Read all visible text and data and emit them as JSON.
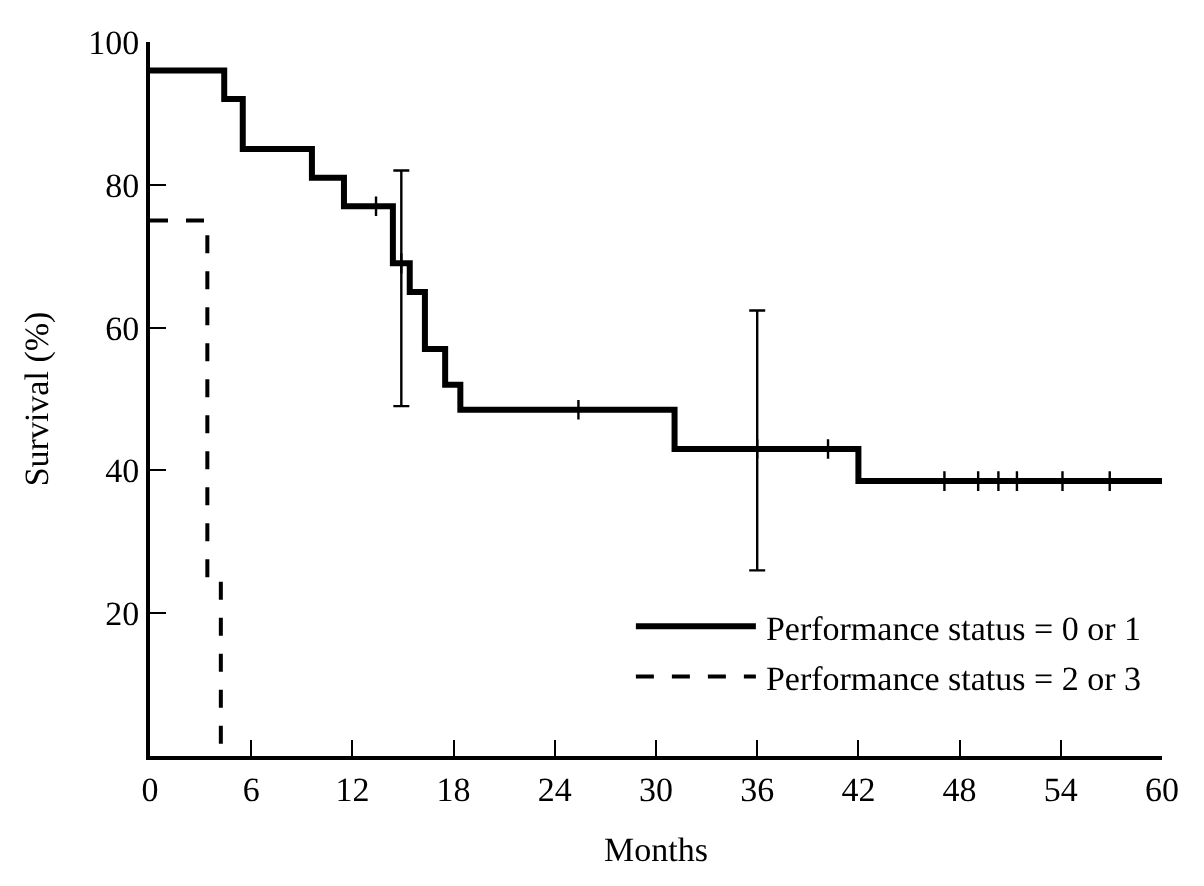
{
  "chart_data": {
    "type": "step",
    "xlabel": "Months",
    "ylabel": "Survival (%)",
    "xlim": [
      0,
      60
    ],
    "ylim": [
      0,
      100
    ],
    "xticks": [
      0,
      6,
      12,
      18,
      24,
      30,
      36,
      42,
      48,
      54,
      60
    ],
    "yticks": [
      20,
      40,
      60,
      80,
      100
    ],
    "legend": "bottom right",
    "series": [
      {
        "name": "Performance status = 0 or 1",
        "color": "#000000",
        "line_style": "solid",
        "x": [
          0,
          4.4,
          5.5,
          9.6,
          11.5,
          14.4,
          15.4,
          16.3,
          17.5,
          18.4,
          31.1,
          42,
          60
        ],
        "values": [
          96,
          92,
          85,
          81,
          77,
          69,
          65,
          57,
          52,
          48.5,
          43,
          38.5,
          38.5
        ]
      },
      {
        "name": "Performance status = 2 or 3",
        "color": "#000000",
        "line_style": "dashed",
        "x": [
          0,
          3.4,
          4.2
        ],
        "values": [
          75,
          25,
          0
        ]
      },
      {
        "type": "scatter",
        "color": "#000000",
        "marker": "cross",
        "x": [
          14.9,
          36
        ],
        "values": [
          69,
          43
        ],
        "errors": [
          [
            49,
            82
          ],
          [
            26,
            62.4
          ]
        ]
      },
      {
        "type": "scatter",
        "color": "#000000",
        "marker": "cross",
        "x": [
          13.4,
          25.4,
          40.2,
          47.1,
          49.1,
          50.3,
          51.4,
          54.1,
          56.9
        ],
        "values": [
          77,
          48.5,
          43,
          38.5,
          38.5,
          38.5,
          38.5,
          38.5,
          38.5
        ]
      }
    ]
  }
}
